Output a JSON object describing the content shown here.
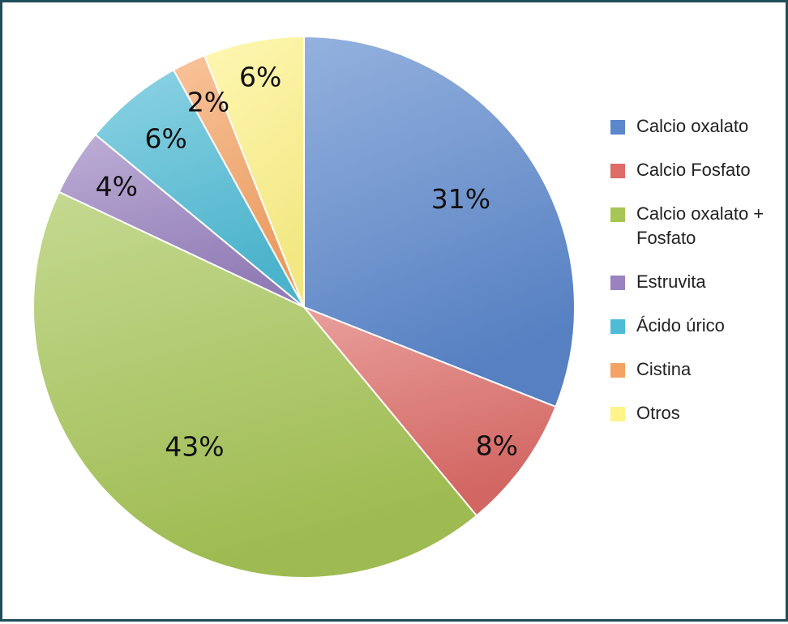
{
  "chart_data": {
    "type": "pie",
    "title": "",
    "legend_position": "right",
    "slices": [
      {
        "name": "Calcio oxalato",
        "value": 31,
        "label": "31%",
        "color": "#5b87cc"
      },
      {
        "name": "Calcio Fosfato",
        "value": 8,
        "label": "8%",
        "color": "#dd6b67"
      },
      {
        "name": "Calcio oxalato + Fosfato",
        "value": 43,
        "label": "43%",
        "color": "#a6c555"
      },
      {
        "name": "Estruvita",
        "value": 4,
        "label": "4%",
        "color": "#9a82c0"
      },
      {
        "name": "Ácido úrico",
        "value": 6,
        "label": "6%",
        "color": "#4fbcd6"
      },
      {
        "name": "Cistina",
        "value": 2,
        "label": "2%",
        "color": "#f5a364"
      },
      {
        "name": "Otros",
        "value": 6,
        "label": "6%",
        "color": "#fff38a"
      }
    ]
  }
}
